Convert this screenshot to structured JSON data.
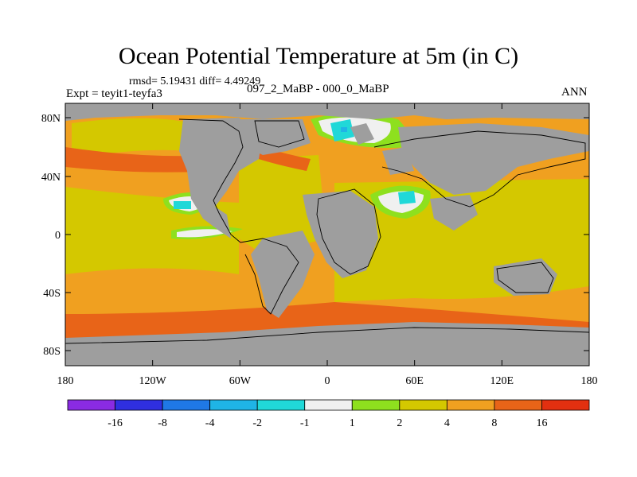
{
  "title": "Ocean Potential Temperature at 5m (in C)",
  "stats_line": "rmsd= 5.19431 diff= 4.49249",
  "experiment": "Expt = teyit1-teyfa3",
  "subtitle": "097_2_MaBP - 000_0_MaBP",
  "period": "ANN",
  "colors": {
    "land": "#9e9e9e",
    "coastline": "#000000"
  },
  "map": {
    "lat_ticks": [
      "80N",
      "40N",
      "0",
      "40S",
      "80S"
    ],
    "lon_ticks": [
      "180",
      "120W",
      "60W",
      "0",
      "60E",
      "120E",
      "180"
    ]
  },
  "legend": {
    "labels": [
      "-16",
      "-8",
      "-4",
      "-2",
      "-1",
      "1",
      "2",
      "4",
      "8",
      "16"
    ],
    "colors": [
      "#8a2be2",
      "#2f2fe0",
      "#1f78e6",
      "#1fb4e6",
      "#20d8d8",
      "#f0f0f0",
      "#8ee01e",
      "#d4c800",
      "#f0a020",
      "#e86418",
      "#e23010"
    ]
  }
}
